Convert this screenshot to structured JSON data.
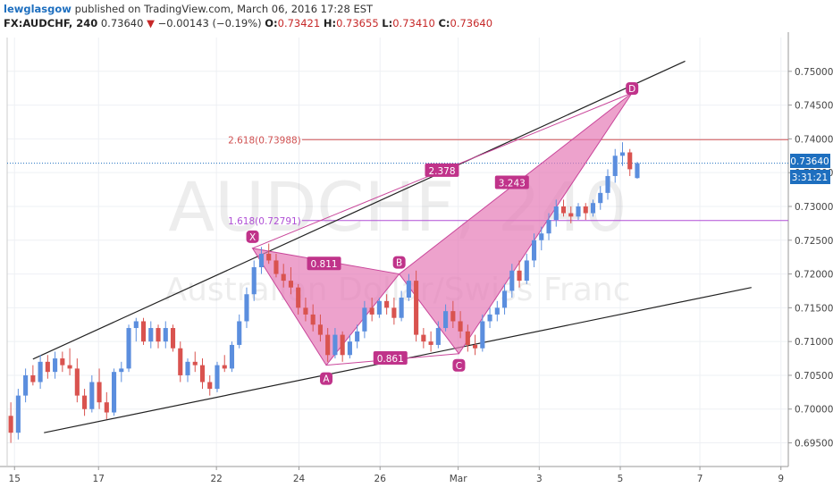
{
  "header": {
    "author": "lewglasgow",
    "published_text": "published on TradingView.com, March 06, 2016 17:28 EST",
    "symbol": "FX:AUDCHF, 240",
    "last": "0.73640",
    "change_arrow": "▼",
    "change": "−0.00143 (−0.19%)",
    "ohlc": [
      {
        "label": "O:",
        "value": "0.73421"
      },
      {
        "label": "H:",
        "value": "0.73655"
      },
      {
        "label": "L:",
        "value": "0.73410"
      },
      {
        "label": "C:",
        "value": "0.73640"
      }
    ]
  },
  "watermark": {
    "main": "AUDCHF, 240",
    "sub": "Australian Dollar/Swiss Franc"
  },
  "price_badges": {
    "last_price": "0.73640",
    "countdown": "3:31:21"
  },
  "colors": {
    "bull": "#5b8ede",
    "bear": "#d9534f",
    "pattern_fill": "#e67bb7",
    "pattern_stroke": "#c9469a",
    "label_bg": "#c0338a",
    "fib_2618": "#d05050",
    "fib_1618": "#b04fd6",
    "last_price": "#1e6fbf"
  },
  "chart_data": {
    "type": "candlestick",
    "y_axis": {
      "range": [
        0.6915,
        0.755
      ],
      "ticks": [
        "0.69500",
        "0.70000",
        "0.70500",
        "0.71000",
        "0.71500",
        "0.72000",
        "0.72500",
        "0.73000",
        "0.73500",
        "0.74000",
        "0.74500",
        "0.75000"
      ],
      "tick_values": [
        0.695,
        0.7,
        0.705,
        0.71,
        0.715,
        0.72,
        0.725,
        0.73,
        0.735,
        0.74,
        0.745,
        0.75
      ],
      "position": "right"
    },
    "x_axis": {
      "range": [
        0,
        106
      ],
      "ticks": [
        {
          "label": "15",
          "x": 1
        },
        {
          "label": "17",
          "x": 12.4
        },
        {
          "label": "22",
          "x": 28.4
        },
        {
          "label": "24",
          "x": 39.6
        },
        {
          "label": "26",
          "x": 50.6
        },
        {
          "label": "Mar",
          "x": 61.2
        },
        {
          "label": "3",
          "x": 72.2
        },
        {
          "label": "5",
          "x": 83.2
        },
        {
          "label": "7",
          "x": 94.0
        },
        {
          "label": "9",
          "x": 105.0
        }
      ]
    },
    "candles": [
      [
        0.699,
        0.701,
        0.695,
        0.6965
      ],
      [
        0.6965,
        0.703,
        0.6955,
        0.702
      ],
      [
        0.702,
        0.706,
        0.701,
        0.705
      ],
      [
        0.705,
        0.7065,
        0.7035,
        0.704
      ],
      [
        0.704,
        0.708,
        0.703,
        0.707
      ],
      [
        0.707,
        0.708,
        0.7045,
        0.7055
      ],
      [
        0.7055,
        0.7085,
        0.7045,
        0.7075
      ],
      [
        0.7075,
        0.7085,
        0.7055,
        0.7065
      ],
      [
        0.7065,
        0.709,
        0.705,
        0.706
      ],
      [
        0.706,
        0.7075,
        0.701,
        0.702
      ],
      [
        0.702,
        0.703,
        0.699,
        0.7
      ],
      [
        0.7,
        0.705,
        0.6995,
        0.704
      ],
      [
        0.704,
        0.706,
        0.7,
        0.701
      ],
      [
        0.701,
        0.7025,
        0.6985,
        0.6995
      ],
      [
        0.6995,
        0.706,
        0.699,
        0.7055
      ],
      [
        0.7055,
        0.707,
        0.704,
        0.706
      ],
      [
        0.706,
        0.7125,
        0.7055,
        0.712
      ],
      [
        0.712,
        0.7135,
        0.71,
        0.713
      ],
      [
        0.713,
        0.7135,
        0.7095,
        0.71
      ],
      [
        0.71,
        0.713,
        0.709,
        0.712
      ],
      [
        0.712,
        0.7125,
        0.709,
        0.71
      ],
      [
        0.71,
        0.713,
        0.709,
        0.712
      ],
      [
        0.712,
        0.7125,
        0.7085,
        0.709
      ],
      [
        0.709,
        0.71,
        0.704,
        0.705
      ],
      [
        0.705,
        0.7075,
        0.704,
        0.707
      ],
      [
        0.707,
        0.7085,
        0.7055,
        0.7065
      ],
      [
        0.7065,
        0.7075,
        0.703,
        0.704
      ],
      [
        0.704,
        0.705,
        0.702,
        0.703
      ],
      [
        0.703,
        0.707,
        0.7025,
        0.7065
      ],
      [
        0.7065,
        0.708,
        0.7055,
        0.706
      ],
      [
        0.706,
        0.71,
        0.7055,
        0.7095
      ],
      [
        0.7095,
        0.714,
        0.709,
        0.713
      ],
      [
        0.713,
        0.718,
        0.712,
        0.717
      ],
      [
        0.717,
        0.722,
        0.716,
        0.721
      ],
      [
        0.721,
        0.724,
        0.72,
        0.723
      ],
      [
        0.723,
        0.7245,
        0.7215,
        0.722
      ],
      [
        0.722,
        0.723,
        0.7195,
        0.72
      ],
      [
        0.72,
        0.7215,
        0.718,
        0.719
      ],
      [
        0.719,
        0.721,
        0.717,
        0.718
      ],
      [
        0.718,
        0.7185,
        0.714,
        0.715
      ],
      [
        0.715,
        0.7165,
        0.713,
        0.714
      ],
      [
        0.714,
        0.7155,
        0.7115,
        0.7125
      ],
      [
        0.7125,
        0.714,
        0.71,
        0.711
      ],
      [
        0.711,
        0.712,
        0.707,
        0.708
      ],
      [
        0.708,
        0.712,
        0.7075,
        0.711
      ],
      [
        0.711,
        0.7115,
        0.707,
        0.708
      ],
      [
        0.708,
        0.711,
        0.7075,
        0.71
      ],
      [
        0.71,
        0.7125,
        0.709,
        0.7115
      ],
      [
        0.7115,
        0.716,
        0.7105,
        0.715
      ],
      [
        0.715,
        0.7165,
        0.713,
        0.714
      ],
      [
        0.714,
        0.7165,
        0.7135,
        0.716
      ],
      [
        0.716,
        0.717,
        0.714,
        0.715
      ],
      [
        0.715,
        0.7165,
        0.7125,
        0.7135
      ],
      [
        0.7135,
        0.7175,
        0.713,
        0.7165
      ],
      [
        0.7165,
        0.72,
        0.716,
        0.719
      ],
      [
        0.719,
        0.7205,
        0.71,
        0.711
      ],
      [
        0.711,
        0.712,
        0.709,
        0.71
      ],
      [
        0.71,
        0.7115,
        0.7085,
        0.7095
      ],
      [
        0.7095,
        0.713,
        0.709,
        0.712
      ],
      [
        0.712,
        0.7155,
        0.7115,
        0.7145
      ],
      [
        0.7145,
        0.716,
        0.712,
        0.713
      ],
      [
        0.713,
        0.7145,
        0.7105,
        0.7115
      ],
      [
        0.7115,
        0.7125,
        0.7085,
        0.7095
      ],
      [
        0.7095,
        0.711,
        0.708,
        0.709
      ],
      [
        0.709,
        0.714,
        0.7085,
        0.713
      ],
      [
        0.713,
        0.715,
        0.712,
        0.714
      ],
      [
        0.714,
        0.716,
        0.713,
        0.715
      ],
      [
        0.715,
        0.7185,
        0.714,
        0.7175
      ],
      [
        0.7175,
        0.7215,
        0.7165,
        0.7205
      ],
      [
        0.7205,
        0.722,
        0.718,
        0.719
      ],
      [
        0.719,
        0.723,
        0.7185,
        0.722
      ],
      [
        0.722,
        0.726,
        0.721,
        0.725
      ],
      [
        0.725,
        0.727,
        0.7235,
        0.726
      ],
      [
        0.726,
        0.729,
        0.725,
        0.728
      ],
      [
        0.728,
        0.731,
        0.727,
        0.73
      ],
      [
        0.73,
        0.731,
        0.7285,
        0.729
      ],
      [
        0.729,
        0.73,
        0.7275,
        0.7285
      ],
      [
        0.7285,
        0.7305,
        0.728,
        0.73
      ],
      [
        0.73,
        0.7305,
        0.728,
        0.729
      ],
      [
        0.729,
        0.731,
        0.7285,
        0.7305
      ],
      [
        0.7305,
        0.733,
        0.7295,
        0.732
      ],
      [
        0.732,
        0.7355,
        0.731,
        0.7345
      ],
      [
        0.7345,
        0.7385,
        0.7335,
        0.7375
      ],
      [
        0.7375,
        0.7395,
        0.736,
        0.738
      ],
      [
        0.738,
        0.7385,
        0.7345,
        0.7355
      ],
      [
        0.7342,
        0.7366,
        0.7341,
        0.7364
      ]
    ],
    "trendlines": [
      {
        "from": [
          3.5,
          0.7074
        ],
        "to": [
          92,
          0.7515
        ],
        "color": "#222222"
      },
      {
        "from": [
          5,
          0.6965
        ],
        "to": [
          101,
          0.718
        ],
        "color": "#222222"
      }
    ],
    "horizontal_levels": [
      {
        "label": "2.618(0.73988)",
        "value": 0.73988,
        "from_x": 40,
        "color": "#d05050"
      },
      {
        "label": "1.618(0.72791)",
        "value": 0.72791,
        "from_x": 40,
        "color": "#b04fd6"
      }
    ],
    "last_price_line": 0.7364,
    "harmonic_pattern": {
      "points": [
        {
          "label": "X",
          "x": 33.3,
          "y": 0.7238
        },
        {
          "label": "A",
          "x": 43.3,
          "y": 0.7065
        },
        {
          "label": "B",
          "x": 53.2,
          "y": 0.72
        },
        {
          "label": "C",
          "x": 61.3,
          "y": 0.7082
        },
        {
          "label": "D",
          "x": 84.8,
          "y": 0.7468
        }
      ],
      "ratios": [
        {
          "label": "0.811",
          "x": 43,
          "y": 0.7215
        },
        {
          "label": "0.861",
          "x": 52,
          "y": 0.7075
        },
        {
          "label": "2.378",
          "x": 59,
          "y": 0.7353
        },
        {
          "label": "3.243",
          "x": 68.5,
          "y": 0.7335
        }
      ]
    }
  }
}
